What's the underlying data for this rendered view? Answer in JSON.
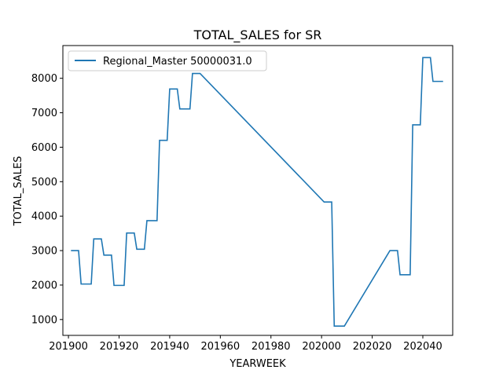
{
  "chart_data": {
    "type": "line",
    "title": "TOTAL_SALES for SR",
    "xlabel": "YEARWEEK",
    "ylabel": "TOTAL_SALES",
    "xlim": [
      201897.8,
      202051.8
    ],
    "ylim": [
      540,
      8950
    ],
    "xticks": [
      201900,
      201920,
      201940,
      201960,
      201980,
      202000,
      202020,
      202040
    ],
    "xtick_labels": [
      "201900",
      "201920",
      "201940",
      "201960",
      "201980",
      "202000",
      "202020",
      "202040"
    ],
    "yticks": [
      1000,
      2000,
      3000,
      4000,
      5000,
      6000,
      7000,
      8000
    ],
    "ytick_labels": [
      "1000",
      "2000",
      "3000",
      "4000",
      "5000",
      "6000",
      "7000",
      "8000"
    ],
    "grid": false,
    "legend_position": "top-left",
    "series": [
      {
        "name": "Regional_Master 50000031.0",
        "color": "#1f77b4",
        "x": [
          201901,
          201904,
          201905,
          201909,
          201910,
          201913,
          201914,
          201917,
          201918,
          201922,
          201923,
          201926,
          201927,
          201930,
          201931,
          201935,
          201936,
          201939,
          201940,
          201943,
          201944,
          201948,
          201949,
          201952,
          202001,
          202004,
          202005,
          202009,
          202027,
          202030,
          202031,
          202035,
          202036,
          202039,
          202040,
          202043,
          202044,
          202048
        ],
        "y": [
          3000,
          3000,
          2030,
          2030,
          3340,
          3340,
          2870,
          2870,
          1990,
          1990,
          3510,
          3510,
          3040,
          3040,
          3870,
          3870,
          6200,
          6200,
          7690,
          7690,
          7110,
          7110,
          8140,
          8140,
          4410,
          4410,
          810,
          810,
          3000,
          3000,
          2300,
          2300,
          6650,
          6650,
          8600,
          8600,
          7910,
          7910
        ]
      }
    ]
  }
}
